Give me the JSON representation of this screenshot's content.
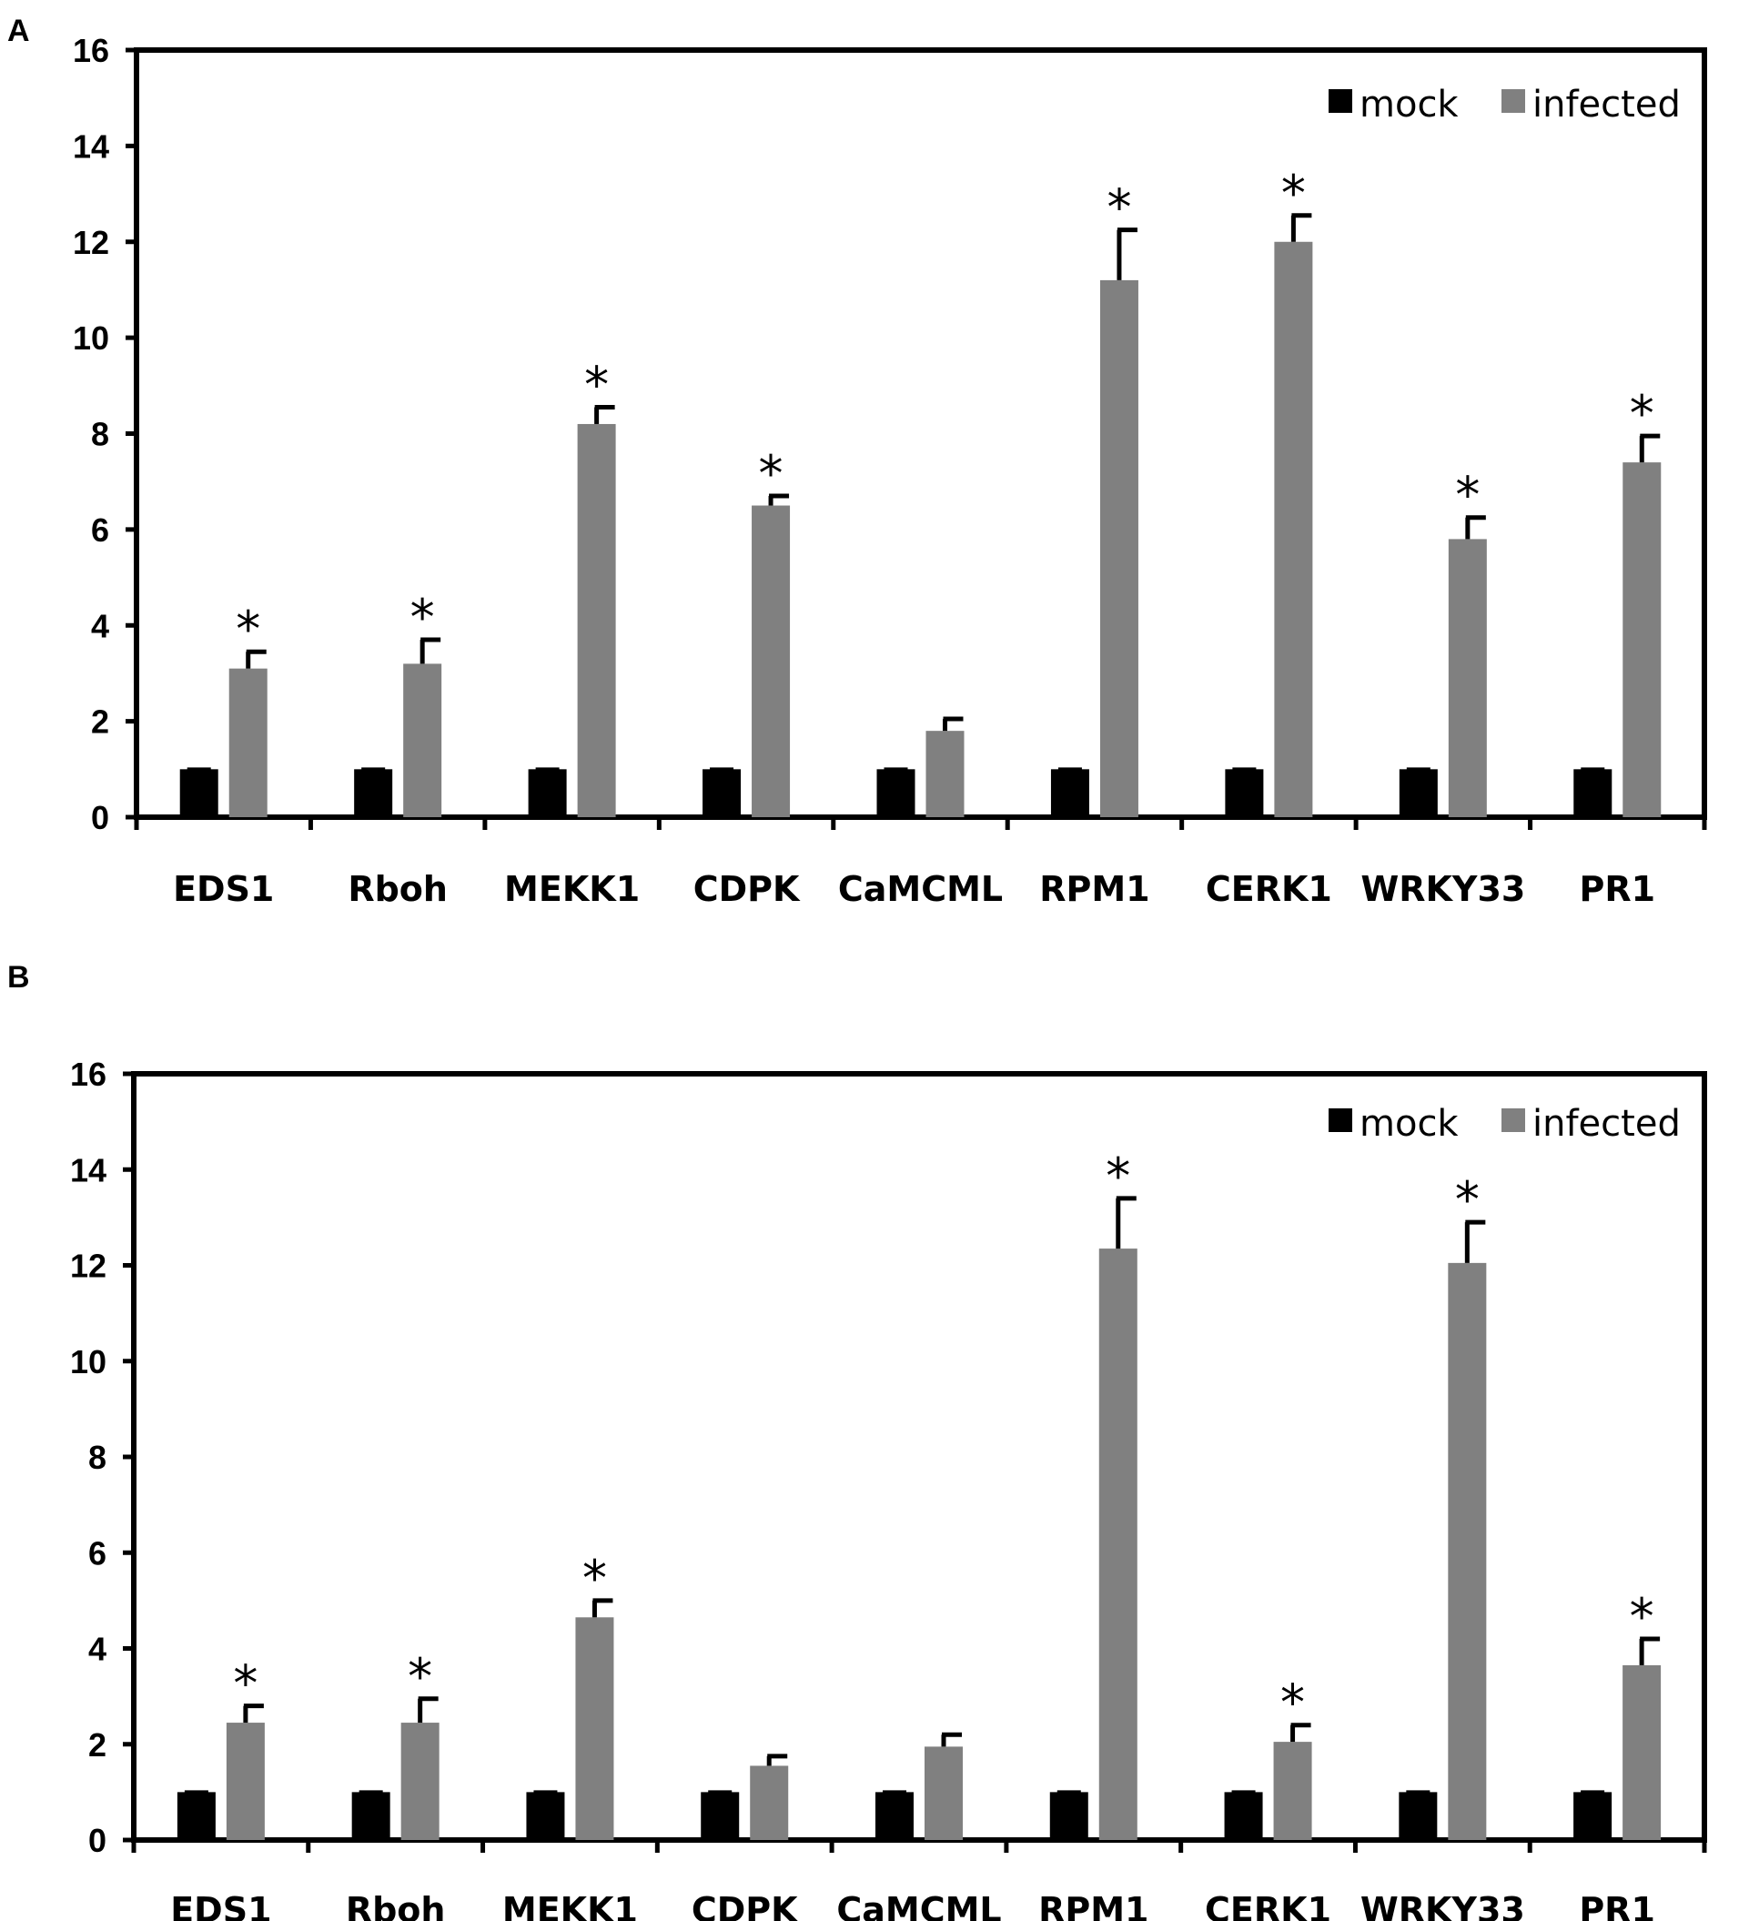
{
  "chart_data": [
    {
      "panel": "A",
      "type": "bar",
      "ylim": [
        0,
        16
      ],
      "yticks": [
        0,
        2,
        4,
        6,
        8,
        10,
        12,
        14,
        16
      ],
      "categories": [
        "EDS1",
        "Rboh",
        "MEKK1",
        "CDPK",
        "CaMCML",
        "RPM1",
        "CERK1",
        "WRKY33",
        "PR1"
      ],
      "series": [
        {
          "name": "mock",
          "color": "#000000",
          "values": [
            1,
            1,
            1,
            1,
            1,
            1,
            1,
            1,
            1
          ],
          "errors": [
            0,
            0,
            0,
            0,
            0,
            0,
            0,
            0,
            0
          ]
        },
        {
          "name": "infected",
          "color": "#808080",
          "values": [
            3.1,
            3.2,
            8.2,
            6.5,
            1.8,
            11.2,
            12.0,
            5.8,
            7.4
          ],
          "errors": [
            0.35,
            0.5,
            0.35,
            0.2,
            0.25,
            1.05,
            0.55,
            0.45,
            0.55
          ]
        }
      ],
      "significant": [
        true,
        true,
        true,
        true,
        false,
        true,
        true,
        true,
        true
      ],
      "significance_marker": "*",
      "legend": [
        "mock",
        "infected"
      ]
    },
    {
      "panel": "B",
      "type": "bar",
      "ylim": [
        0,
        16
      ],
      "yticks": [
        0,
        2,
        4,
        6,
        8,
        10,
        12,
        14,
        16
      ],
      "categories": [
        "EDS1",
        "Rboh",
        "MEKK1",
        "CDPK",
        "CaMCML",
        "RPM1",
        "CERK1",
        "WRKY33",
        "PR1"
      ],
      "series": [
        {
          "name": "mock",
          "color": "#000000",
          "values": [
            1,
            1,
            1,
            1,
            1,
            1,
            1,
            1,
            1
          ],
          "errors": [
            0,
            0,
            0,
            0,
            0,
            0,
            0,
            0,
            0
          ]
        },
        {
          "name": "infected",
          "color": "#808080",
          "values": [
            2.45,
            2.45,
            4.65,
            1.55,
            1.95,
            12.35,
            2.05,
            12.05,
            3.65
          ],
          "errors": [
            0.35,
            0.5,
            0.35,
            0.2,
            0.25,
            1.05,
            0.35,
            0.85,
            0.55
          ]
        }
      ],
      "significant": [
        true,
        true,
        true,
        false,
        false,
        true,
        true,
        true,
        true
      ],
      "significance_marker": "*",
      "legend": [
        "mock",
        "infected"
      ]
    }
  ]
}
